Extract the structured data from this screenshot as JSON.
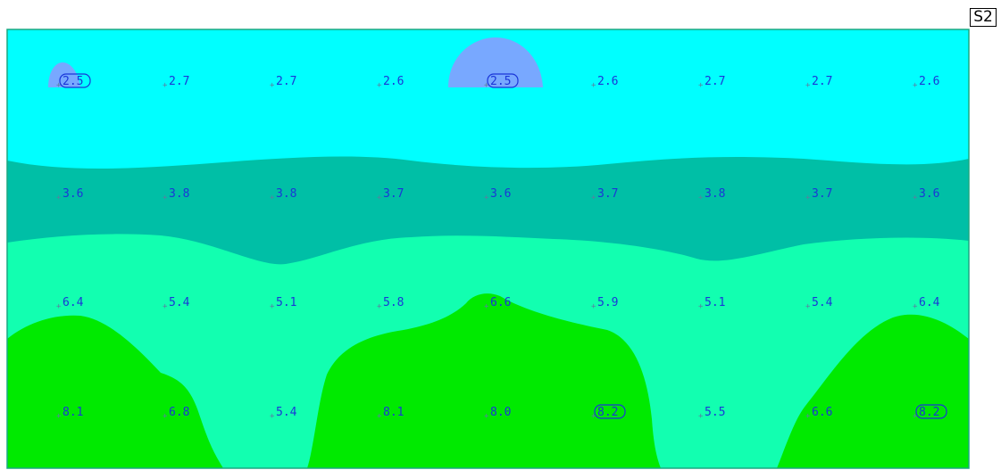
{
  "sheet_label": "S2",
  "colors": {
    "band_top": "#00ffff",
    "band_teal": "#00bfa6",
    "band_mint": "#12ffb0",
    "band_green": "#00ea00",
    "low_spot": "#78a8ff",
    "label_text": "#1a36d8",
    "border": "#000000"
  },
  "grid": {
    "rows": [
      [
        "2.5",
        "2.7",
        "2.7",
        "2.6",
        "2.5",
        "2.6",
        "2.7",
        "2.7",
        "2.6"
      ],
      [
        "3.6",
        "3.8",
        "3.8",
        "3.7",
        "3.6",
        "3.7",
        "3.8",
        "3.7",
        "3.6"
      ],
      [
        "6.4",
        "5.4",
        "5.1",
        "5.8",
        "6.6",
        "5.9",
        "5.1",
        "5.4",
        "6.4"
      ],
      [
        "8.1",
        "6.8",
        "5.4",
        "8.1",
        "8.0",
        "8.2",
        "5.5",
        "6.6",
        "8.2"
      ]
    ],
    "boxed_cells": [
      [
        0,
        0
      ],
      [
        0,
        4
      ],
      [
        3,
        5
      ],
      [
        3,
        8
      ]
    ]
  }
}
